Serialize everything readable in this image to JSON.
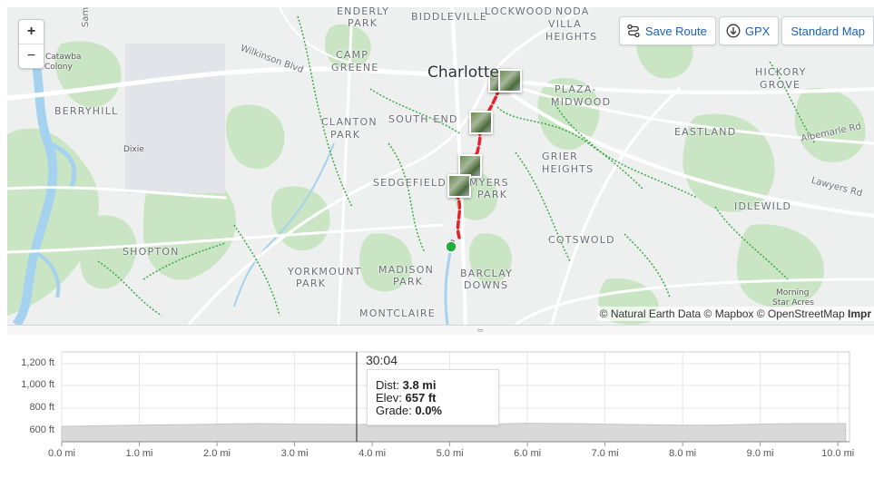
{
  "map": {
    "zoom_in": "+",
    "zoom_out": "−",
    "toolbar": {
      "save_route": "Save Route",
      "gpx": "GPX",
      "map_style": "Standard Map"
    },
    "places": [
      {
        "name": "ENDERLY",
        "cls": "place"
      },
      {
        "name": "PARK",
        "cls": "place"
      },
      {
        "name": "BIDDLEVILLE",
        "cls": "place"
      },
      {
        "name": "LOCKWOOD",
        "cls": "place"
      },
      {
        "name": "NODA",
        "cls": "place"
      },
      {
        "name": "VILLA",
        "cls": "place"
      },
      {
        "name": "HEIGHTS",
        "cls": "place"
      },
      {
        "name": "Catawba",
        "cls": "place small"
      },
      {
        "name": "Colony",
        "cls": "place small"
      },
      {
        "name": "CAMP",
        "cls": "place"
      },
      {
        "name": "GREENE",
        "cls": "place"
      },
      {
        "name": "Charlotte",
        "cls": "place city"
      },
      {
        "name": "HICKORY",
        "cls": "place"
      },
      {
        "name": "GROVE",
        "cls": "place"
      },
      {
        "name": "PLAZA-",
        "cls": "place"
      },
      {
        "name": "MIDWOOD",
        "cls": "place"
      },
      {
        "name": "BERRYHILL",
        "cls": "place"
      },
      {
        "name": "CLANTON",
        "cls": "place"
      },
      {
        "name": "PARK",
        "cls": "place"
      },
      {
        "name": "SOUTH END",
        "cls": "place"
      },
      {
        "name": "EASTLAND",
        "cls": "place"
      },
      {
        "name": "Dixie",
        "cls": "place small"
      },
      {
        "name": "GRIER",
        "cls": "place"
      },
      {
        "name": "HEIGHTS",
        "cls": "place"
      },
      {
        "name": "SEDGEFIELD",
        "cls": "place"
      },
      {
        "name": "MYERS",
        "cls": "place"
      },
      {
        "name": "PARK",
        "cls": "place"
      },
      {
        "name": "IDLEWILD",
        "cls": "place"
      },
      {
        "name": "COTSWOLD",
        "cls": "place"
      },
      {
        "name": "SHOPTON",
        "cls": "place"
      },
      {
        "name": "YORKMOUNT",
        "cls": "place"
      },
      {
        "name": "PARK",
        "cls": "place"
      },
      {
        "name": "MADISON",
        "cls": "place"
      },
      {
        "name": "PARK",
        "cls": "place"
      },
      {
        "name": "BARCLAY",
        "cls": "place"
      },
      {
        "name": "DOWNS",
        "cls": "place"
      },
      {
        "name": "Morning",
        "cls": "place small"
      },
      {
        "name": "Star Acres",
        "cls": "place small"
      },
      {
        "name": "MONTCLAIRE",
        "cls": "place"
      }
    ],
    "roads": [
      "Wilkinson Blvd",
      "Albemarle Rd",
      "Lawyers Rd",
      "Sam"
    ],
    "attribution": {
      "text": "© Natural Earth Data © Mapbox © OpenStreetMap ",
      "bold": "Impr"
    }
  },
  "elevation": {
    "y_ticks": [
      "1,200 ft",
      "1,000 ft",
      "800 ft",
      "600 ft"
    ],
    "x_ticks": [
      "0.0 mi",
      "1.0 mi",
      "2.0 mi",
      "3.0 mi",
      "4.0 mi",
      "5.0 mi",
      "6.0 mi",
      "7.0 mi",
      "8.0 mi",
      "9.0 mi",
      "10.0 mi"
    ],
    "cursor_time": "30:04",
    "tooltip": {
      "dist_label": "Dist: ",
      "dist_value": "3.8 mi",
      "elev_label": "Elev: ",
      "elev_value": "657 ft",
      "grade_label": "Grade: ",
      "grade_value": "0.0%"
    }
  },
  "chart_data": {
    "type": "area",
    "xlabel": "",
    "ylabel": "",
    "xlim": [
      0,
      10.15
    ],
    "ylim": [
      500,
      1300
    ],
    "x": [
      0.0,
      0.5,
      1.0,
      1.5,
      2.0,
      2.5,
      3.0,
      3.5,
      3.8,
      4.0,
      4.5,
      5.0,
      5.5,
      6.0,
      6.5,
      7.0,
      7.5,
      8.0,
      8.5,
      9.0,
      9.5,
      10.1
    ],
    "y": [
      640,
      645,
      650,
      655,
      660,
      665,
      660,
      658,
      657,
      660,
      665,
      662,
      660,
      668,
      665,
      660,
      655,
      650,
      652,
      660,
      665,
      665
    ],
    "cursor_x": 3.8,
    "grid": true
  },
  "colors": {
    "route": "#e8202a",
    "start": "#1fae3a",
    "link": "#1a5fb4",
    "park": "#c9e5c4",
    "water": "#a5d2ee",
    "trail": "#3aa845"
  }
}
